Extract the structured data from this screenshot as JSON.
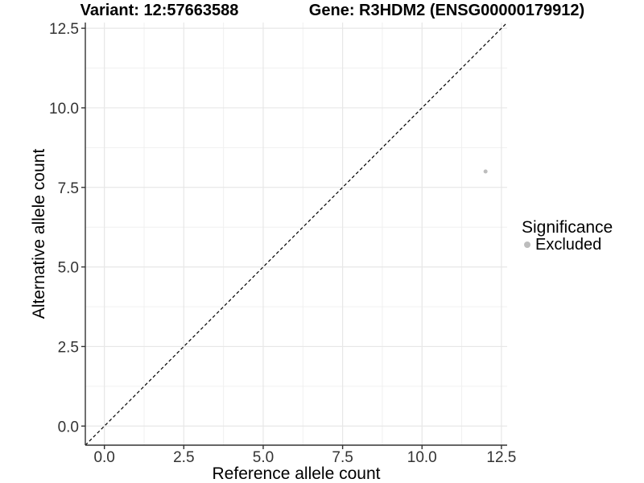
{
  "chart_data": {
    "type": "scatter",
    "title_left": "Variant: 12:57663588",
    "title_right": "Gene: R3HDM2 (ENSG00000179912)",
    "xlabel": "Reference allele count",
    "ylabel": "Alternative allele count",
    "xlim": [
      -0.6,
      12.68
    ],
    "ylim": [
      -0.6,
      12.68
    ],
    "x_major_ticks": [
      0,
      2.5,
      5,
      7.5,
      10,
      12.5
    ],
    "y_major_ticks": [
      0,
      2.5,
      5,
      7.5,
      10,
      12.5
    ],
    "x_tick_labels": [
      "0.0",
      "2.5",
      "5.0",
      "7.5",
      "10.0",
      "12.5"
    ],
    "y_tick_labels": [
      "0.0",
      "2.5",
      "5.0",
      "7.5",
      "10.0",
      "12.5"
    ],
    "minor_ticks": [
      1.25,
      3.75,
      6.25,
      8.75,
      11.25
    ],
    "grid": true,
    "reference_line": {
      "type": "identity",
      "slope": 1,
      "intercept": 0,
      "style": "dashed",
      "color": "#000000"
    },
    "series": [
      {
        "name": "Excluded",
        "color": "#bdbdbd",
        "points": [
          {
            "x": 12,
            "y": 8
          }
        ]
      }
    ],
    "legend": {
      "title": "Significance",
      "position": "right",
      "items": [
        {
          "label": "Excluded",
          "color": "#bdbdbd"
        }
      ]
    },
    "colors": {
      "grid_major": "#e7e7e7",
      "grid_minor": "#f0f0f0",
      "axis_line": "#333333",
      "tick_label": "#333333",
      "axis_title": "#000000",
      "point": "#bdbdbd"
    }
  }
}
